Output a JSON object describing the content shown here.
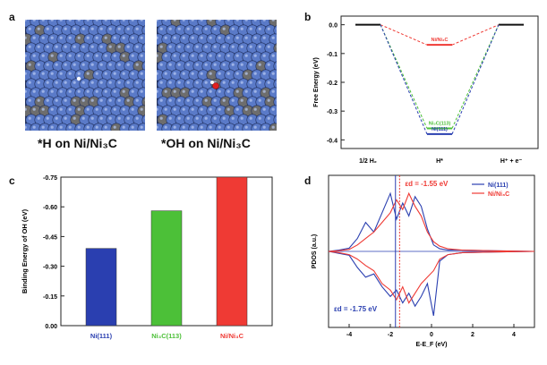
{
  "panels": {
    "a": {
      "letter": "a",
      "left_caption": "*H on Ni/Ni₃C",
      "right_caption": "*OH on Ni/Ni₃C"
    },
    "b": {
      "letter": "b"
    },
    "c": {
      "letter": "c"
    },
    "d": {
      "letter": "d"
    }
  },
  "colors": {
    "ni111": "#2a3fb0",
    "ni3c113": "#4cc038",
    "ni_ni3c": "#ef3a34",
    "atom_blue": "#5a7ac8",
    "atom_grey": "#6d6d6d"
  },
  "chart_data": [
    {
      "id": "b",
      "type": "line",
      "title": "",
      "ylabel": "Free Energy (eV)",
      "xlabel": "",
      "categories": [
        "1/2 H₂",
        "H*",
        "H⁺ + e⁻"
      ],
      "ylim": [
        -0.43,
        0.03
      ],
      "yticks": [
        "0.0",
        "-0.1",
        "-0.2",
        "-0.3",
        "-0.4"
      ],
      "ytick_values": [
        0.0,
        -0.1,
        -0.2,
        -0.3,
        -0.4
      ],
      "series": [
        {
          "name": "Ni/Ni₃C",
          "values": [
            0.0,
            -0.07,
            0.0
          ],
          "label": "Ni/Ni₃C"
        },
        {
          "name": "Ni₃C(113)",
          "values": [
            0.0,
            -0.36,
            0.0
          ],
          "label": "Ni₃C(113)"
        },
        {
          "name": "Ni(111)",
          "values": [
            0.0,
            -0.38,
            0.0
          ],
          "label": "Ni(111)"
        }
      ]
    },
    {
      "id": "c",
      "type": "bar",
      "title": "",
      "ylabel": "Binding Energy of OH (eV)",
      "xlabel": "",
      "categories": [
        "Ni(111)",
        "Ni₃C(113)",
        "Ni/Ni₃C"
      ],
      "values": [
        -0.39,
        -0.58,
        -0.75
      ],
      "ylim": [
        0.0,
        -0.75
      ],
      "yticks": [
        "-0.75",
        "-0.60",
        "-0.45",
        "-0.30",
        "-0.15",
        "0.00"
      ],
      "ytick_values": [
        -0.75,
        -0.6,
        -0.45,
        -0.3,
        -0.15,
        0.0
      ]
    },
    {
      "id": "d",
      "type": "line",
      "title": "",
      "ylabel": "PDOS (a.u.)",
      "xlabel": "E-E_F (eV)",
      "xlim": [
        -5,
        5
      ],
      "xticks": [
        "-4",
        "-2",
        "0",
        "2",
        "4"
      ],
      "xtick_values": [
        -4,
        -2,
        0,
        2,
        4
      ],
      "legend": [
        "Ni(111)",
        "Ni/Ni₃C"
      ],
      "annotations": [
        {
          "text": "εd = -1.55 eV",
          "x": -1.55,
          "series": "Ni/Ni₃C"
        },
        {
          "text": "εd = -1.75 eV",
          "x": -1.75,
          "series": "Ni(111)"
        }
      ],
      "series": [
        {
          "name": "Ni(111)",
          "x": [
            -5,
            -4.5,
            -4,
            -3.6,
            -3.2,
            -2.8,
            -2.4,
            -2.0,
            -1.7,
            -1.4,
            -1.1,
            -0.8,
            -0.5,
            -0.2,
            0.1,
            0.4,
            0.8,
            1.5,
            3,
            5
          ],
          "up": [
            0,
            0.02,
            0.05,
            0.2,
            0.45,
            0.3,
            0.6,
            0.9,
            0.5,
            0.75,
            0.55,
            0.85,
            0.7,
            0.35,
            0.1,
            0.04,
            0.02,
            0.02,
            0.01,
            0
          ],
          "down": [
            0,
            -0.03,
            -0.06,
            -0.25,
            -0.4,
            -0.35,
            -0.55,
            -0.7,
            -0.6,
            -0.8,
            -0.65,
            -0.85,
            -0.7,
            -0.5,
            -1.0,
            -0.15,
            -0.05,
            -0.02,
            -0.01,
            0
          ]
        },
        {
          "name": "Ni/Ni₃C",
          "x": [
            -5,
            -4.5,
            -4,
            -3.6,
            -3.2,
            -2.8,
            -2.4,
            -2.0,
            -1.7,
            -1.4,
            -1.1,
            -0.8,
            -0.5,
            -0.2,
            0.1,
            0.4,
            0.8,
            1.5,
            3,
            5
          ],
          "up": [
            0,
            0.01,
            0.03,
            0.1,
            0.2,
            0.3,
            0.45,
            0.6,
            0.8,
            0.65,
            0.9,
            0.7,
            0.55,
            0.3,
            0.15,
            0.08,
            0.04,
            0.02,
            0.01,
            0
          ],
          "down": [
            0,
            -0.02,
            -0.05,
            -0.12,
            -0.22,
            -0.3,
            -0.5,
            -0.6,
            -0.75,
            -0.55,
            -0.8,
            -0.65,
            -0.5,
            -0.4,
            -0.3,
            -0.12,
            -0.05,
            -0.02,
            -0.01,
            0
          ]
        }
      ]
    }
  ]
}
